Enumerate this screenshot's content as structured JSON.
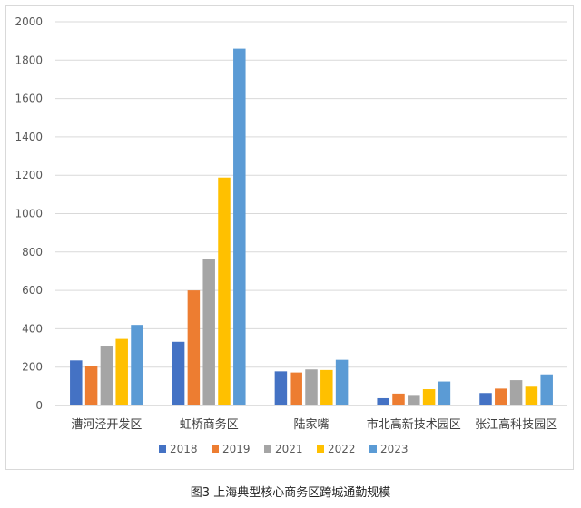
{
  "caption": "图3 上海典型核心商务区跨城通勤规模",
  "chart_data": {
    "type": "bar",
    "title": "",
    "xlabel": "",
    "ylabel": "",
    "ylim": [
      0,
      2000
    ],
    "yticks": [
      0,
      200,
      400,
      600,
      800,
      1000,
      1200,
      1400,
      1600,
      1800,
      2000
    ],
    "grid": true,
    "legend_position": "bottom",
    "categories": [
      "漕河泾开发区",
      "虹桥商务区",
      "陆家嘴",
      "市北高新技术园区",
      "张江高科技园区"
    ],
    "series": [
      {
        "name": "2018",
        "color": "#4472c4",
        "values": [
          235,
          332,
          178,
          38,
          65
        ]
      },
      {
        "name": "2019",
        "color": "#ed7d31",
        "values": [
          207,
          600,
          172,
          62,
          88
        ]
      },
      {
        "name": "2021",
        "color": "#a5a5a5",
        "values": [
          312,
          765,
          188,
          55,
          132
        ]
      },
      {
        "name": "2022",
        "color": "#ffc000",
        "values": [
          347,
          1188,
          185,
          85,
          98
        ]
      },
      {
        "name": "2023",
        "color": "#5b9bd5",
        "values": [
          420,
          1860,
          238,
          125,
          162
        ]
      }
    ]
  }
}
